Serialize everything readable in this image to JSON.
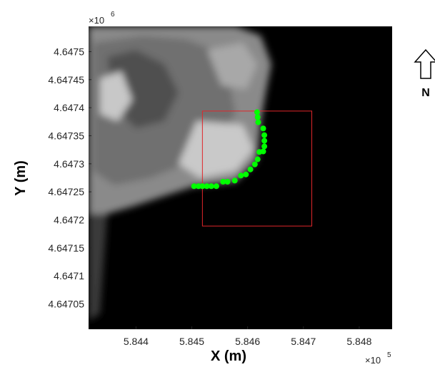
{
  "chart_data": {
    "type": "scatter",
    "xlabel": "X (m)",
    "ylabel": "Y (m)",
    "x_multiplier": {
      "base": "×10",
      "exponent": "5"
    },
    "y_multiplier": {
      "base": "×10",
      "exponent": "6"
    },
    "north_label": "N",
    "xlim": [
      5.84315,
      5.84859
    ],
    "ylim": [
      4.647005,
      4.647545
    ],
    "xticks": [
      5.844,
      5.845,
      5.846,
      5.847,
      5.848
    ],
    "yticks": [
      4.64705,
      4.6471,
      4.64715,
      4.6472,
      4.64725,
      4.6473,
      4.64735,
      4.6474,
      4.64745,
      4.6475
    ],
    "box": {
      "color": "#e0262a",
      "x": [
        5.84519,
        5.84715
      ],
      "y": [
        4.647189,
        4.647394
      ]
    },
    "series": [
      {
        "color": "#00ff00",
        "x": [
          5.84504,
          5.84512,
          5.84519,
          5.84527,
          5.84535,
          5.84544,
          5.84556,
          5.84564,
          5.84577,
          5.84588,
          5.84597,
          5.84605,
          5.84613,
          5.84618,
          5.84621,
          5.84628,
          5.8463,
          5.8463,
          5.8463,
          5.84628,
          5.84619,
          5.84618,
          5.84617
        ],
        "values": [
          4.64726,
          4.64726,
          4.64726,
          4.64726,
          4.64726,
          4.64726,
          4.647268,
          4.647268,
          4.64727,
          4.647279,
          4.647281,
          4.64729,
          4.647299,
          4.647308,
          4.647321,
          4.647322,
          4.647331,
          4.647341,
          4.647351,
          4.647363,
          4.647374,
          4.647383,
          4.647392
        ]
      }
    ]
  }
}
